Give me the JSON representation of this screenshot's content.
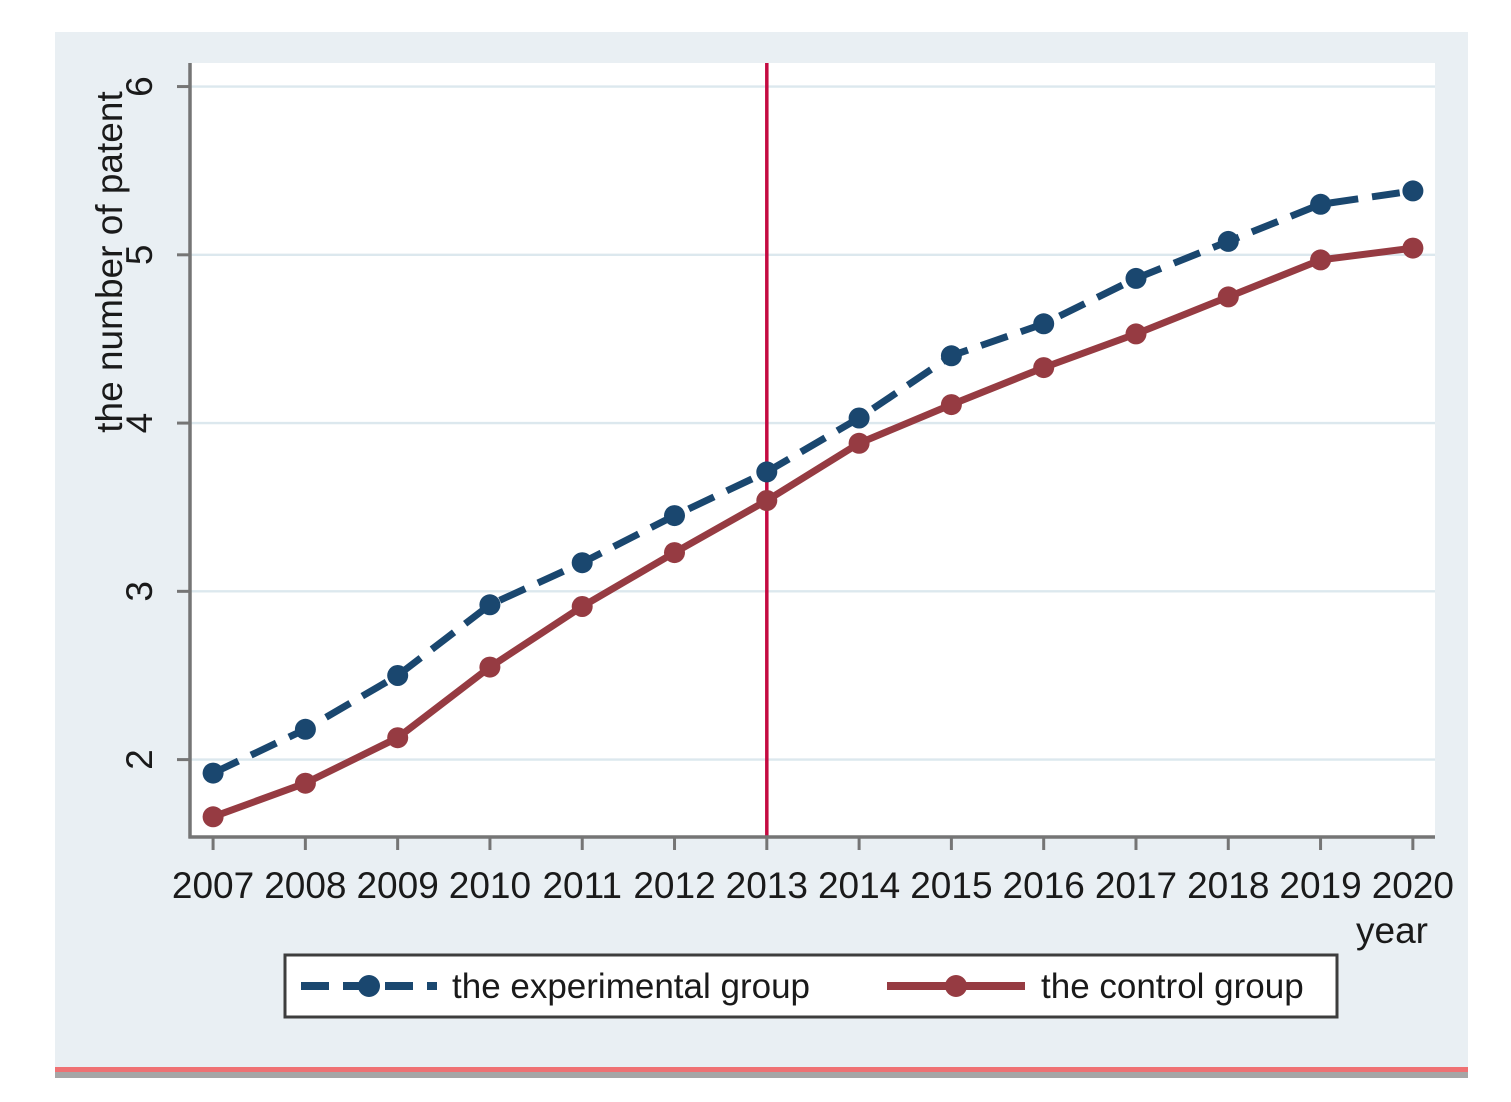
{
  "figure": {
    "background_color": "#e9eff3",
    "plot_background": "#ffffff",
    "grid_color": "#dce8ee",
    "axis_color": "#757575",
    "text_color": "#1a1a1a",
    "legend_border_color": "#3d3d3d",
    "bottom_rule_red": "#ef7173",
    "bottom_rule_gray": "#a6a6a6"
  },
  "chart_data": {
    "type": "line",
    "title": "",
    "xlabel": "year",
    "ylabel": "the number of patent",
    "x": [
      2007,
      2008,
      2009,
      2010,
      2011,
      2012,
      2013,
      2014,
      2015,
      2016,
      2017,
      2018,
      2019,
      2020
    ],
    "x_tick_labels": [
      "2007",
      "2008",
      "2009",
      "2010",
      "2011",
      "2012",
      "2013",
      "2014",
      "2015",
      "2016",
      "2017",
      "2018",
      "2019",
      "2020"
    ],
    "y_ticks": [
      2,
      3,
      4,
      5,
      6
    ],
    "y_tick_labels": [
      "2",
      "3",
      "4",
      "5",
      "6"
    ],
    "xlim": [
      2006.75,
      2020.24
    ],
    "ylim": [
      1.54,
      6.14
    ],
    "grid": "horizontal",
    "legend_position": "bottom",
    "reference_line": {
      "x": 2013,
      "orientation": "vertical",
      "color": "#c40b41"
    },
    "series": [
      {
        "name": "the experimental group",
        "color": "#1a476f",
        "style": "dashed",
        "marker": "circle",
        "values": [
          1.92,
          2.18,
          2.5,
          2.92,
          3.17,
          3.45,
          3.71,
          4.03,
          4.4,
          4.59,
          4.86,
          5.08,
          5.3,
          5.38
        ]
      },
      {
        "name": "the control group",
        "color": "#963b42",
        "style": "solid",
        "marker": "circle",
        "values": [
          1.66,
          1.86,
          2.13,
          2.55,
          2.91,
          3.23,
          3.54,
          3.88,
          4.11,
          4.33,
          4.53,
          4.75,
          4.97,
          5.04
        ]
      }
    ]
  }
}
